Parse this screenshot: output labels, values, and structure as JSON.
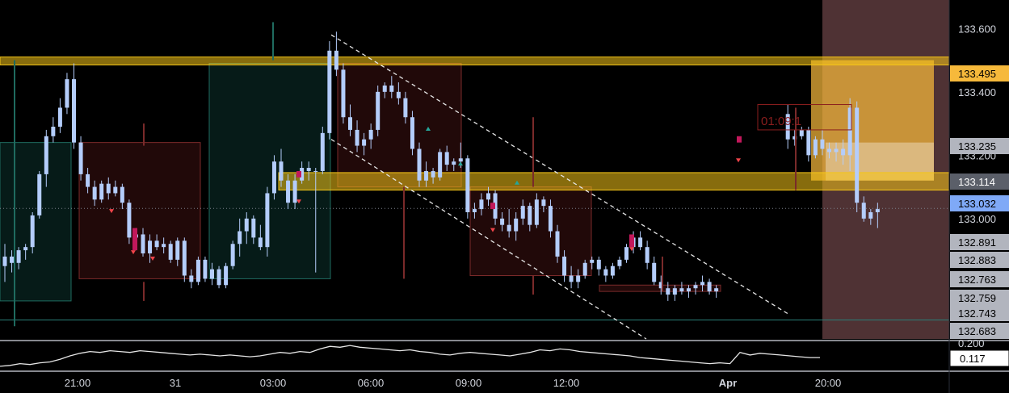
{
  "toolbar": {
    "indicator_count": "2",
    "collapse_icon": "chevron-down-icon"
  },
  "colors": {
    "background": "#000000",
    "up_candle": "#b4cdfb",
    "down_candle": "#b4cdfb",
    "supply_zone": "#f5c518",
    "demand_box": "#0d3b35",
    "bear_box": "#4a1414",
    "session_highlight": "#4f3234",
    "current_price": "#7fa9f7",
    "highlight_label": "#f6b93b"
  },
  "chart_data": {
    "type": "candlestick",
    "symbol_timeframe": "",
    "x_axis": {
      "tick_labels": [
        "21:00",
        "31",
        "03:00",
        "06:00",
        "09:00",
        "12:00",
        "Apr",
        "20:00"
      ]
    },
    "y_axis": {
      "range": [
        132.62,
        133.69
      ],
      "tick_labels": [
        "133.600",
        "133.400",
        "133.200",
        "133.000"
      ],
      "price_labels": [
        {
          "value": "133.495",
          "kind": "zone-top"
        },
        {
          "value": "133.235",
          "kind": "level"
        },
        {
          "value": "133.114",
          "kind": "zone-bottom"
        },
        {
          "value": "133.032",
          "kind": "current"
        },
        {
          "value": "132.891",
          "kind": "level"
        },
        {
          "value": "132.883",
          "kind": "level"
        },
        {
          "value": "132.763",
          "kind": "level"
        },
        {
          "value": "132.759",
          "kind": "level"
        },
        {
          "value": "132.743",
          "kind": "level"
        },
        {
          "value": "132.683",
          "kind": "level"
        }
      ]
    },
    "horizontal_zones": [
      {
        "top": 133.51,
        "bottom": 133.485
      },
      {
        "top": 133.145,
        "bottom": 133.09
      }
    ],
    "countdown_label": "01:09:1",
    "candles": [
      [
        132.85,
        132.92,
        132.8,
        132.88
      ],
      [
        132.88,
        132.9,
        132.83,
        132.86
      ],
      [
        132.86,
        132.91,
        132.84,
        132.9
      ],
      [
        132.9,
        132.92,
        132.87,
        132.91
      ],
      [
        132.91,
        133.02,
        132.89,
        133.01
      ],
      [
        133.01,
        133.15,
        133.0,
        133.14
      ],
      [
        133.14,
        133.28,
        133.1,
        133.26
      ],
      [
        133.26,
        133.32,
        133.24,
        133.29
      ],
      [
        133.29,
        133.38,
        133.27,
        133.35
      ],
      [
        133.35,
        133.46,
        133.33,
        133.44
      ],
      [
        133.44,
        133.49,
        133.22,
        133.24
      ],
      [
        133.24,
        133.26,
        133.12,
        133.14
      ],
      [
        133.14,
        133.16,
        133.08,
        133.1
      ],
      [
        133.1,
        133.12,
        133.04,
        133.06
      ],
      [
        133.06,
        133.12,
        133.05,
        133.11
      ],
      [
        133.11,
        133.13,
        133.06,
        133.08
      ],
      [
        133.08,
        133.12,
        133.07,
        133.1
      ],
      [
        133.1,
        133.11,
        133.03,
        133.05
      ],
      [
        133.05,
        133.06,
        132.92,
        132.94
      ],
      [
        132.94,
        132.97,
        132.9,
        132.95
      ],
      [
        132.95,
        132.97,
        132.88,
        132.89
      ],
      [
        132.89,
        132.95,
        132.86,
        132.93
      ],
      [
        132.93,
        132.95,
        132.9,
        132.91
      ],
      [
        132.91,
        132.94,
        132.89,
        132.92
      ],
      [
        132.92,
        132.93,
        132.86,
        132.87
      ],
      [
        132.87,
        132.94,
        132.85,
        132.93
      ],
      [
        132.93,
        132.94,
        132.8,
        132.82
      ],
      [
        132.82,
        132.84,
        132.78,
        132.8
      ],
      [
        132.8,
        132.88,
        132.79,
        132.87
      ],
      [
        132.87,
        132.88,
        132.8,
        132.81
      ],
      [
        132.81,
        132.86,
        132.79,
        132.84
      ],
      [
        132.84,
        132.85,
        132.78,
        132.79
      ],
      [
        132.79,
        132.86,
        132.78,
        132.85
      ],
      [
        132.85,
        132.93,
        132.84,
        132.92
      ],
      [
        132.92,
        133.0,
        132.88,
        132.96
      ],
      [
        132.96,
        133.02,
        132.92,
        133.0
      ],
      [
        133.0,
        133.01,
        132.92,
        132.94
      ],
      [
        132.94,
        132.98,
        132.9,
        132.91
      ],
      [
        132.91,
        133.1,
        132.88,
        133.08
      ],
      [
        133.08,
        133.2,
        133.06,
        133.18
      ],
      [
        133.18,
        133.22,
        133.1,
        133.12
      ],
      [
        133.12,
        133.14,
        133.03,
        133.05
      ],
      [
        133.05,
        133.14,
        133.03,
        133.12
      ],
      [
        133.12,
        133.18,
        133.11,
        133.16
      ],
      [
        133.16,
        133.18,
        133.12,
        133.15
      ],
      [
        133.15,
        133.16,
        132.83,
        133.15
      ],
      [
        133.15,
        133.29,
        133.14,
        133.27
      ],
      [
        133.27,
        133.56,
        133.25,
        133.53
      ],
      [
        133.53,
        133.59,
        133.45,
        133.47
      ],
      [
        133.47,
        133.49,
        133.3,
        133.32
      ],
      [
        133.32,
        133.36,
        133.26,
        133.28
      ],
      [
        133.28,
        133.31,
        133.21,
        133.23
      ],
      [
        133.23,
        133.27,
        133.2,
        133.25
      ],
      [
        133.25,
        133.3,
        133.22,
        133.28
      ],
      [
        133.28,
        133.42,
        133.26,
        133.4
      ],
      [
        133.4,
        133.43,
        133.38,
        133.42
      ],
      [
        133.42,
        133.45,
        133.38,
        133.4
      ],
      [
        133.4,
        133.43,
        133.36,
        133.38
      ],
      [
        133.38,
        133.4,
        133.3,
        133.32
      ],
      [
        133.32,
        133.34,
        133.2,
        133.22
      ],
      [
        133.22,
        133.24,
        133.1,
        133.12
      ],
      [
        133.12,
        133.18,
        133.1,
        133.15
      ],
      [
        133.15,
        133.16,
        133.11,
        133.13
      ],
      [
        133.13,
        133.22,
        133.12,
        133.21
      ],
      [
        133.21,
        133.23,
        133.15,
        133.17
      ],
      [
        133.17,
        133.19,
        133.15,
        133.18
      ],
      [
        133.18,
        133.24,
        133.16,
        133.19
      ],
      [
        133.19,
        133.2,
        133.0,
        133.02
      ],
      [
        133.02,
        133.05,
        133.0,
        133.03
      ],
      [
        133.03,
        133.08,
        133.01,
        133.06
      ],
      [
        133.06,
        133.1,
        133.04,
        133.08
      ],
      [
        133.08,
        133.09,
        132.98,
        133.0
      ],
      [
        133.0,
        133.02,
        132.96,
        132.98
      ],
      [
        132.98,
        133.03,
        132.94,
        132.96
      ],
      [
        132.96,
        133.02,
        132.93,
        133.0
      ],
      [
        133.0,
        133.06,
        132.98,
        133.04
      ],
      [
        133.04,
        133.05,
        132.96,
        132.98
      ],
      [
        132.98,
        133.08,
        132.97,
        133.06
      ],
      [
        133.06,
        133.07,
        133.02,
        133.04
      ],
      [
        133.04,
        133.06,
        132.94,
        132.96
      ],
      [
        132.96,
        132.98,
        132.86,
        132.88
      ],
      [
        132.88,
        132.9,
        132.8,
        132.82
      ],
      [
        132.82,
        132.85,
        132.78,
        132.8
      ],
      [
        132.8,
        132.84,
        132.78,
        132.82
      ],
      [
        132.82,
        132.87,
        132.81,
        132.86
      ],
      [
        132.86,
        132.88,
        132.84,
        132.87
      ],
      [
        132.87,
        132.88,
        132.82,
        132.84
      ],
      [
        132.84,
        132.85,
        132.8,
        132.82
      ],
      [
        132.82,
        132.86,
        132.81,
        132.85
      ],
      [
        132.85,
        132.88,
        132.84,
        132.87
      ],
      [
        132.87,
        132.92,
        132.86,
        132.91
      ],
      [
        132.91,
        132.96,
        132.89,
        132.94
      ],
      [
        132.94,
        132.96,
        132.9,
        132.91
      ],
      [
        132.91,
        132.93,
        132.84,
        132.86
      ],
      [
        132.86,
        132.88,
        132.79,
        132.8
      ],
      [
        132.8,
        132.82,
        132.76,
        132.78
      ],
      [
        132.78,
        132.8,
        132.74,
        132.76
      ],
      [
        132.76,
        132.79,
        132.74,
        132.78
      ],
      [
        132.78,
        132.8,
        132.76,
        132.77
      ],
      [
        132.77,
        132.79,
        132.75,
        132.78
      ],
      [
        132.78,
        132.8,
        132.76,
        132.79
      ],
      [
        132.79,
        132.82,
        132.77,
        132.8
      ],
      [
        132.8,
        132.81,
        132.76,
        132.77
      ],
      [
        132.77,
        132.79,
        132.75,
        132.78
      ],
      [
        133.33,
        133.36,
        133.22,
        133.25
      ],
      [
        133.25,
        133.28,
        133.23,
        133.26
      ],
      [
        133.26,
        133.29,
        133.25,
        133.28
      ],
      [
        133.28,
        133.29,
        133.18,
        133.2
      ],
      [
        133.2,
        133.26,
        133.19,
        133.25
      ],
      [
        133.25,
        133.28,
        133.2,
        133.22
      ],
      [
        133.22,
        133.24,
        133.19,
        133.21
      ],
      [
        133.21,
        133.24,
        133.18,
        133.22
      ],
      [
        133.22,
        133.25,
        133.17,
        133.2
      ],
      [
        133.2,
        133.38,
        133.15,
        133.35
      ],
      [
        133.35,
        133.37,
        133.02,
        133.05
      ],
      [
        133.05,
        133.07,
        132.99,
        133.0
      ],
      [
        133.0,
        133.03,
        132.98,
        133.02
      ],
      [
        133.02,
        133.05,
        132.97,
        133.03
      ]
    ],
    "oscillator": {
      "tick_labels": [
        "0.200"
      ],
      "current_value": "0.117",
      "values": [
        0.02,
        0.03,
        0.05,
        0.04,
        0.06,
        0.07,
        0.1,
        0.14,
        0.17,
        0.19,
        0.18,
        0.2,
        0.19,
        0.18,
        0.2,
        0.19,
        0.18,
        0.17,
        0.16,
        0.15,
        0.16,
        0.15,
        0.14,
        0.15,
        0.14,
        0.13,
        0.14,
        0.16,
        0.18,
        0.17,
        0.19,
        0.18,
        0.22,
        0.25,
        0.24,
        0.26,
        0.24,
        0.23,
        0.22,
        0.21,
        0.2,
        0.21,
        0.19,
        0.18,
        0.16,
        0.15,
        0.17,
        0.18,
        0.17,
        0.16,
        0.15,
        0.14,
        0.16,
        0.18,
        0.21,
        0.2,
        0.22,
        0.21,
        0.19,
        0.18,
        0.17,
        0.16,
        0.15,
        0.14,
        0.12,
        0.11,
        0.1,
        0.09,
        0.08,
        0.07,
        0.06,
        0.05,
        0.06,
        0.05,
        0.18,
        0.15,
        0.17,
        0.16,
        0.15,
        0.14,
        0.13,
        0.12,
        0.12
      ]
    }
  }
}
